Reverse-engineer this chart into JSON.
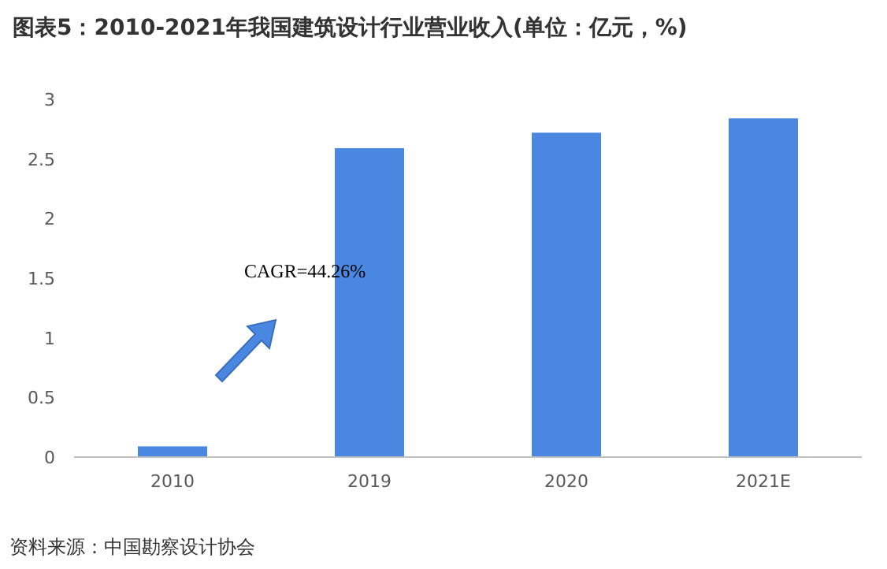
{
  "chart_data": {
    "type": "bar",
    "title": "图表5：2010-2021年我国建筑设计行业营业收入(单位：亿元，%)",
    "categories": [
      "2010",
      "2019",
      "2020",
      "2021E"
    ],
    "values": [
      0.09,
      2.59,
      2.72,
      2.84
    ],
    "color": "#4a87e0",
    "ylim": [
      0,
      3
    ],
    "yticks": [
      0,
      0.5,
      1,
      1.5,
      2,
      2.5,
      3
    ],
    "grid": false,
    "annotations": [
      "CAGR=44.26%",
      "资料来源：中国勘察设计协会"
    ]
  }
}
